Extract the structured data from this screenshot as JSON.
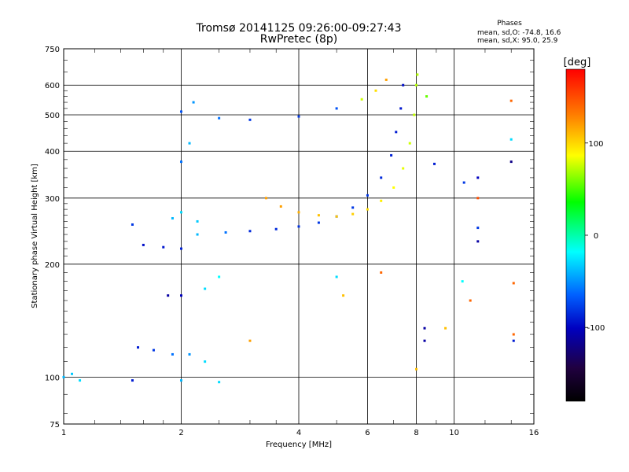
{
  "chart_data": {
    "type": "scatter",
    "title": "Tromsø 20141125 09:26:00-09:27:43",
    "subtitle": "RwPretec (8p)",
    "xlabel": "Frequency [MHz]",
    "ylabel": "Stationary phase Virtual Height [km]",
    "x_scale": "log",
    "y_scale": "log",
    "xlim": [
      1,
      16
    ],
    "ylim": [
      75,
      750
    ],
    "x_ticks": [
      1,
      2,
      4,
      6,
      8,
      10,
      16
    ],
    "y_ticks": [
      75,
      100,
      200,
      300,
      400,
      500,
      600,
      750
    ],
    "grid": true,
    "stats": {
      "heading": "Phases",
      "line_o": "mean, sd,O: -74.8, 16.6",
      "line_x": "mean, sd,X: 95.0, 25.9"
    },
    "colorbar": {
      "label": "[deg]",
      "range": [
        -180,
        180
      ],
      "ticks": [
        100,
        0,
        -100
      ],
      "colors": [
        "#ff0000",
        "#ff8000",
        "#ffff00",
        "#00ff00",
        "#00ffff",
        "#0060ff",
        "#0000c0",
        "#200040",
        "#000000"
      ]
    },
    "series": [
      {
        "points": [
          {
            "f": 1.6,
            "h": 225,
            "p": -95
          },
          {
            "f": 1.8,
            "h": 222,
            "p": -92
          },
          {
            "f": 2.0,
            "h": 220,
            "p": -88
          },
          {
            "f": 2.2,
            "h": 240,
            "p": -40
          },
          {
            "f": 2.6,
            "h": 243,
            "p": -60
          },
          {
            "f": 3.0,
            "h": 245,
            "p": -85
          },
          {
            "f": 3.5,
            "h": 248,
            "p": -85
          },
          {
            "f": 4.0,
            "h": 252,
            "p": -82
          },
          {
            "f": 4.5,
            "h": 258,
            "p": -80
          },
          {
            "f": 5.0,
            "h": 268,
            "p": -80
          },
          {
            "f": 5.5,
            "h": 283,
            "p": -80
          },
          {
            "f": 6.0,
            "h": 305,
            "p": -80
          },
          {
            "f": 6.5,
            "h": 340,
            "p": -85
          },
          {
            "f": 6.9,
            "h": 390,
            "p": -88
          },
          {
            "f": 7.1,
            "h": 450,
            "p": -90
          },
          {
            "f": 7.3,
            "h": 520,
            "p": -92
          },
          {
            "f": 7.4,
            "h": 600,
            "p": -95
          }
        ]
      },
      {
        "points": [
          {
            "f": 3.3,
            "h": 300,
            "p": 120
          },
          {
            "f": 3.6,
            "h": 285,
            "p": 120
          },
          {
            "f": 4.0,
            "h": 275,
            "p": 115
          },
          {
            "f": 4.5,
            "h": 270,
            "p": 110
          },
          {
            "f": 5.0,
            "h": 268,
            "p": 108
          },
          {
            "f": 5.5,
            "h": 272,
            "p": 105
          },
          {
            "f": 6.0,
            "h": 280,
            "p": 100
          },
          {
            "f": 6.5,
            "h": 295,
            "p": 95
          },
          {
            "f": 7.0,
            "h": 320,
            "p": 90
          },
          {
            "f": 7.4,
            "h": 360,
            "p": 85
          },
          {
            "f": 7.7,
            "h": 420,
            "p": 80
          },
          {
            "f": 7.9,
            "h": 500,
            "p": 78
          },
          {
            "f": 8.0,
            "h": 600,
            "p": 75
          },
          {
            "f": 8.05,
            "h": 640,
            "p": 75
          }
        ]
      },
      {
        "points": [
          {
            "f": 2.0,
            "h": 510,
            "p": -70
          },
          {
            "f": 2.5,
            "h": 490,
            "p": -60
          },
          {
            "f": 3.0,
            "h": 485,
            "p": -80
          },
          {
            "f": 4.0,
            "h": 495,
            "p": -80
          },
          {
            "f": 5.0,
            "h": 520,
            "p": -70
          },
          {
            "f": 5.8,
            "h": 550,
            "p": 80
          },
          {
            "f": 6.3,
            "h": 580,
            "p": 100
          },
          {
            "f": 6.7,
            "h": 620,
            "p": 120
          }
        ]
      },
      {
        "points": [
          {
            "f": 1.55,
            "h": 120,
            "p": -90
          },
          {
            "f": 1.7,
            "h": 118,
            "p": -80
          },
          {
            "f": 1.9,
            "h": 115,
            "p": -60
          },
          {
            "f": 2.1,
            "h": 115,
            "p": -50
          },
          {
            "f": 2.3,
            "h": 110,
            "p": -30
          }
        ]
      },
      {
        "points": [
          {
            "f": 1.0,
            "h": 100,
            "p": -40
          },
          {
            "f": 1.05,
            "h": 102,
            "p": -35
          },
          {
            "f": 1.1,
            "h": 98,
            "p": -30
          },
          {
            "f": 1.5,
            "h": 98,
            "p": -90
          },
          {
            "f": 2.0,
            "h": 98,
            "p": -40
          },
          {
            "f": 2.5,
            "h": 97,
            "p": -30
          }
        ]
      },
      {
        "points": [
          {
            "f": 1.85,
            "h": 165,
            "p": -110
          },
          {
            "f": 2.0,
            "h": 165,
            "p": -100
          },
          {
            "f": 2.3,
            "h": 172,
            "p": -30
          },
          {
            "f": 2.5,
            "h": 185,
            "p": -20
          }
        ]
      },
      {
        "points": [
          {
            "f": 1.5,
            "h": 255,
            "p": -80
          },
          {
            "f": 1.9,
            "h": 265,
            "p": -40
          },
          {
            "f": 2.0,
            "h": 275,
            "p": -30
          },
          {
            "f": 2.2,
            "h": 260,
            "p": -35
          }
        ]
      },
      {
        "points": [
          {
            "f": 2.0,
            "h": 375,
            "p": -60
          },
          {
            "f": 2.1,
            "h": 420,
            "p": -40
          },
          {
            "f": 2.15,
            "h": 540,
            "p": -50
          }
        ]
      },
      {
        "points": [
          {
            "f": 8.5,
            "h": 560,
            "p": 60
          },
          {
            "f": 8.9,
            "h": 370,
            "p": -90
          },
          {
            "f": 10.6,
            "h": 330,
            "p": -80
          },
          {
            "f": 11.5,
            "h": 340,
            "p": -100
          },
          {
            "f": 11.5,
            "h": 300,
            "p": 150
          },
          {
            "f": 11.5,
            "h": 250,
            "p": -80
          },
          {
            "f": 11.5,
            "h": 230,
            "p": -110
          },
          {
            "f": 14.0,
            "h": 545,
            "p": 140
          },
          {
            "f": 14.0,
            "h": 430,
            "p": -30
          },
          {
            "f": 14.0,
            "h": 375,
            "p": -120
          },
          {
            "f": 14.2,
            "h": 178,
            "p": 140
          },
          {
            "f": 14.2,
            "h": 130,
            "p": 140
          },
          {
            "f": 14.2,
            "h": 125,
            "p": -90
          },
          {
            "f": 8.4,
            "h": 135,
            "p": -110
          },
          {
            "f": 8.4,
            "h": 125,
            "p": -110
          },
          {
            "f": 9.5,
            "h": 135,
            "p": 110
          },
          {
            "f": 5.0,
            "h": 185,
            "p": -30
          },
          {
            "f": 5.2,
            "h": 165,
            "p": 110
          },
          {
            "f": 3.0,
            "h": 125,
            "p": 120
          },
          {
            "f": 8.0,
            "h": 105,
            "p": 110
          },
          {
            "f": 6.5,
            "h": 190,
            "p": 140
          },
          {
            "f": 10.5,
            "h": 180,
            "p": -20
          },
          {
            "f": 11.0,
            "h": 160,
            "p": 140
          }
        ]
      }
    ]
  }
}
